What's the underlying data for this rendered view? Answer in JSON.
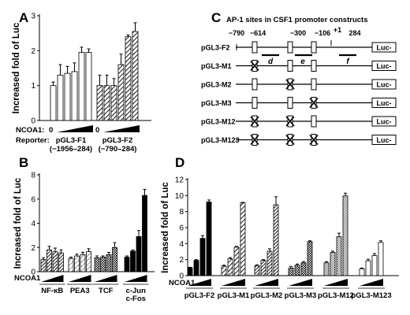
{
  "chart_data": [
    {
      "panel": "A",
      "type": "bar",
      "ylabel": "Increased fold of Luc",
      "ylim": [
        0,
        3
      ],
      "yticks": [
        0,
        1,
        2,
        3
      ],
      "cofactor_label": "NCOA1:",
      "cofactor_zero": "0",
      "reporter_label": "Reporter:",
      "groups": [
        {
          "name": "pGL3-F1",
          "range": "(−1956–284)",
          "pattern": "open",
          "values": [
            1.0,
            1.3,
            1.35,
            1.4,
            1.95,
            1.95
          ],
          "errors": [
            0.1,
            0.3,
            0.2,
            0.25,
            0.15,
            0.1
          ]
        },
        {
          "name": "pGL3-F2",
          "range": "(−790–284)",
          "pattern": "hatch",
          "values": [
            1.0,
            1.0,
            1.0,
            1.6,
            2.4,
            2.55
          ],
          "errors": [
            0.3,
            0.3,
            0.2,
            0.3,
            0.05,
            0.25
          ]
        }
      ]
    },
    {
      "panel": "B",
      "type": "bar",
      "ylabel": "Increased fold of Luc",
      "ylim": [
        0,
        8
      ],
      "yticks": [
        0,
        2,
        4,
        6,
        8
      ],
      "cofactor_label": "NCOA1",
      "groups": [
        {
          "label": "NF-κB",
          "pattern": "hatch-dense",
          "values": [
            1.0,
            1.8,
            1.65,
            1.55
          ],
          "errors": [
            0.15,
            0.3,
            0.3,
            0.25
          ]
        },
        {
          "label": "PEA3",
          "pattern": "hatch-light",
          "values": [
            1.1,
            1.3,
            1.4,
            1.65
          ],
          "errors": [
            0.1,
            0.15,
            0.2,
            0.25
          ]
        },
        {
          "label": "TCF",
          "pattern": "checker",
          "values": [
            1.15,
            1.2,
            1.4,
            2.0
          ],
          "errors": [
            0.15,
            0.1,
            0.2,
            0.4
          ]
        },
        {
          "label": "c-Jun\nc-Fos",
          "pattern": "solid",
          "values": [
            1.2,
            1.7,
            2.9,
            6.3
          ],
          "errors": [
            0.1,
            0.1,
            0.5,
            0.5
          ]
        }
      ]
    },
    {
      "panel": "D",
      "type": "bar",
      "ylabel": "Increased fold of Luc",
      "ylim": [
        0,
        12
      ],
      "yticks": [
        0,
        2,
        4,
        6,
        8,
        10,
        12
      ],
      "cofactor_label": "NCOA1",
      "groups": [
        {
          "label": "pGL3-F2",
          "pattern": "solid",
          "values": [
            1.0,
            1.9,
            4.65,
            9.2
          ],
          "errors": [
            0.05,
            0.1,
            0.35,
            0.25
          ]
        },
        {
          "label": "pGL3-M1",
          "pattern": "hatch",
          "values": [
            1.2,
            2.1,
            3.55,
            9.1
          ],
          "errors": [
            0.1,
            0.15,
            0.1,
            0.05
          ]
        },
        {
          "label": "pGL3-M2",
          "pattern": "hatch-dense",
          "values": [
            1.25,
            1.9,
            3.05,
            8.85
          ],
          "errors": [
            0.1,
            0.1,
            0.3,
            1.0
          ]
        },
        {
          "label": "pGL3-M3",
          "pattern": "checker",
          "values": [
            0.95,
            1.3,
            1.6,
            4.25
          ],
          "errors": [
            0.2,
            0.15,
            0.15,
            0.1
          ]
        },
        {
          "label": "pGL3-M12",
          "pattern": "checker-light",
          "values": [
            1.6,
            2.9,
            4.85,
            9.95
          ],
          "errors": [
            0.15,
            0.15,
            0.45,
            0.35
          ]
        },
        {
          "label": "pGL3-M123",
          "pattern": "open",
          "values": [
            0.85,
            1.85,
            2.5,
            4.15
          ],
          "errors": [
            0.1,
            0.2,
            0.25,
            0.2
          ]
        }
      ]
    }
  ],
  "panel_letters": {
    "a": "A",
    "b": "B",
    "c": "C",
    "d": "D"
  },
  "diagram": {
    "title": "AP-1 sites in CSF1 promoter constructs",
    "positions": [
      "−790",
      "−614",
      "−300",
      "−106",
      "+1",
      "284"
    ],
    "probes": [
      "d",
      "e",
      "f"
    ],
    "luc_label": "Luc-",
    "constructs": [
      {
        "name": "pGL3-F2",
        "mutated": [
          false,
          false,
          false
        ]
      },
      {
        "name": "pGL3-M1",
        "mutated": [
          true,
          false,
          false
        ]
      },
      {
        "name": "pGL3-M2",
        "mutated": [
          false,
          true,
          false
        ]
      },
      {
        "name": "pGL3-M3",
        "mutated": [
          false,
          false,
          true
        ]
      },
      {
        "name": "pGL3-M12",
        "mutated": [
          true,
          true,
          false
        ]
      },
      {
        "name": "pGL3-M123",
        "mutated": [
          true,
          true,
          true
        ]
      }
    ]
  }
}
